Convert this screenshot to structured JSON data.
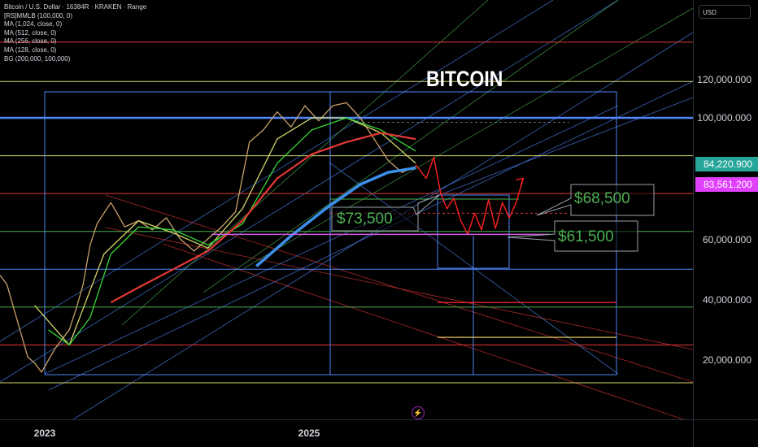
{
  "header": {
    "symbol_line": "Bitcoin / U.S. Dollar · 16384R · KRAKEN · Range",
    "indicators": [
      "[RS]MMLB (100,000, 0)",
      "MA (1,024, close, 0)",
      "MA (512, close, 0)",
      "MA (256, close, 0)",
      "MA (128, close, 0)",
      "BG (200,000, 100,000)"
    ]
  },
  "currency_label": "USD",
  "title_text": "BITCOIN",
  "annotations": {
    "a1": "$73,500",
    "a2": "$68,500",
    "a3": "$61,500"
  },
  "price_labels": {
    "last": "84,220.900",
    "last_color": "#26a69a",
    "ma": "83,561.200",
    "ma_color": "#e040fb"
  },
  "chart_data": {
    "type": "line",
    "title": "BITCOIN",
    "yaxis_tick_labels": [
      "120,000.000",
      "100,000.000",
      "60,000.000",
      "40,000.000",
      "20,000.000"
    ],
    "yaxis_ticks": [
      120000,
      100000,
      60000,
      40000,
      20000
    ],
    "xaxis_tick_labels": [
      "2023",
      "2025"
    ],
    "ylim": [
      0,
      135000
    ],
    "grid": false,
    "legend": "top-left",
    "horizontal_levels": [
      {
        "value": 125000,
        "color": "#e53935"
      },
      {
        "value": 112000,
        "color": "#d4d46a"
      },
      {
        "value": 100000,
        "color": "#4f86f7"
      },
      {
        "value": 87500,
        "color": "#d4d46a"
      },
      {
        "value": 75000,
        "color": "#e53935"
      },
      {
        "value": 62500,
        "color": "#4caf50"
      },
      {
        "value": 50000,
        "color": "#4f86f7"
      },
      {
        "value": 37500,
        "color": "#4caf50"
      },
      {
        "value": 25000,
        "color": "#e53935"
      },
      {
        "value": 12500,
        "color": "#d4d46a"
      }
    ],
    "projection_levels": [
      {
        "value": 39000,
        "color": "#ff2a2a"
      },
      {
        "value": 27500,
        "color": "#ffe066"
      }
    ],
    "price_path": [
      [
        0.0,
        48000
      ],
      [
        0.01,
        45000
      ],
      [
        0.02,
        37000
      ],
      [
        0.03,
        29000
      ],
      [
        0.04,
        21000
      ],
      [
        0.05,
        19000
      ],
      [
        0.06,
        16000
      ],
      [
        0.07,
        20000
      ],
      [
        0.08,
        24000
      ],
      [
        0.09,
        27000
      ],
      [
        0.1,
        30000
      ],
      [
        0.11,
        37000
      ],
      [
        0.12,
        45000
      ],
      [
        0.13,
        58000
      ],
      [
        0.14,
        65000
      ],
      [
        0.16,
        72000
      ],
      [
        0.18,
        64000
      ],
      [
        0.2,
        66000
      ],
      [
        0.22,
        63000
      ],
      [
        0.24,
        67000
      ],
      [
        0.26,
        60000
      ],
      [
        0.28,
        56000
      ],
      [
        0.3,
        60000
      ],
      [
        0.32,
        64000
      ],
      [
        0.34,
        69000
      ],
      [
        0.36,
        92000
      ],
      [
        0.38,
        96000
      ],
      [
        0.4,
        102000
      ],
      [
        0.42,
        97000
      ],
      [
        0.44,
        104000
      ],
      [
        0.46,
        99000
      ],
      [
        0.48,
        104000
      ],
      [
        0.5,
        105000
      ],
      [
        0.52,
        100000
      ],
      [
        0.54,
        93000
      ],
      [
        0.56,
        86000
      ],
      [
        0.58,
        82000
      ],
      [
        0.6,
        84000
      ]
    ],
    "forecast_path": [
      [
        0.6,
        84500
      ],
      [
        0.615,
        80000
      ],
      [
        0.626,
        87000
      ],
      [
        0.636,
        75000
      ],
      [
        0.645,
        70000
      ],
      [
        0.655,
        73500
      ],
      [
        0.665,
        66000
      ],
      [
        0.675,
        61500
      ],
      [
        0.685,
        68500
      ],
      [
        0.695,
        63000
      ],
      [
        0.705,
        73000
      ],
      [
        0.715,
        63500
      ],
      [
        0.725,
        72000
      ],
      [
        0.735,
        67000
      ],
      [
        0.745,
        72000
      ],
      [
        0.755,
        80000
      ]
    ],
    "series": [
      {
        "name": "MA (128, close, 0)",
        "color": "#d4d46a",
        "values": [
          [
            0.05,
            38000
          ],
          [
            0.1,
            25000
          ],
          [
            0.15,
            55000
          ],
          [
            0.2,
            66000
          ],
          [
            0.25,
            62000
          ],
          [
            0.3,
            57000
          ],
          [
            0.35,
            70000
          ],
          [
            0.4,
            93000
          ],
          [
            0.45,
            100000
          ],
          [
            0.5,
            100000
          ],
          [
            0.55,
            95000
          ],
          [
            0.6,
            85000
          ]
        ]
      },
      {
        "name": "MA (256, close, 0)",
        "color": "#36d636",
        "values": [
          [
            0.07,
            30000
          ],
          [
            0.1,
            25000
          ],
          [
            0.13,
            34000
          ],
          [
            0.16,
            55000
          ],
          [
            0.2,
            64000
          ],
          [
            0.25,
            63000
          ],
          [
            0.3,
            58000
          ],
          [
            0.35,
            65000
          ],
          [
            0.4,
            85000
          ],
          [
            0.45,
            96000
          ],
          [
            0.5,
            100000
          ],
          [
            0.55,
            96000
          ],
          [
            0.6,
            89000
          ]
        ]
      },
      {
        "name": "MA (512, close, 0)",
        "color": "#e53935",
        "values": [
          [
            0.16,
            39000
          ],
          [
            0.2,
            44000
          ],
          [
            0.25,
            50000
          ],
          [
            0.3,
            56000
          ],
          [
            0.35,
            66000
          ],
          [
            0.4,
            80000
          ],
          [
            0.45,
            88000
          ],
          [
            0.5,
            92000
          ],
          [
            0.55,
            95000
          ],
          [
            0.6,
            93000
          ]
        ]
      },
      {
        "name": "MA (1,024, close, 0)",
        "color": "#3d8fe8",
        "values": [
          [
            0.37,
            51000
          ],
          [
            0.42,
            61000
          ],
          [
            0.47,
            70000
          ],
          [
            0.52,
            78000
          ],
          [
            0.56,
            82000
          ],
          [
            0.6,
            83500
          ]
        ]
      }
    ]
  }
}
